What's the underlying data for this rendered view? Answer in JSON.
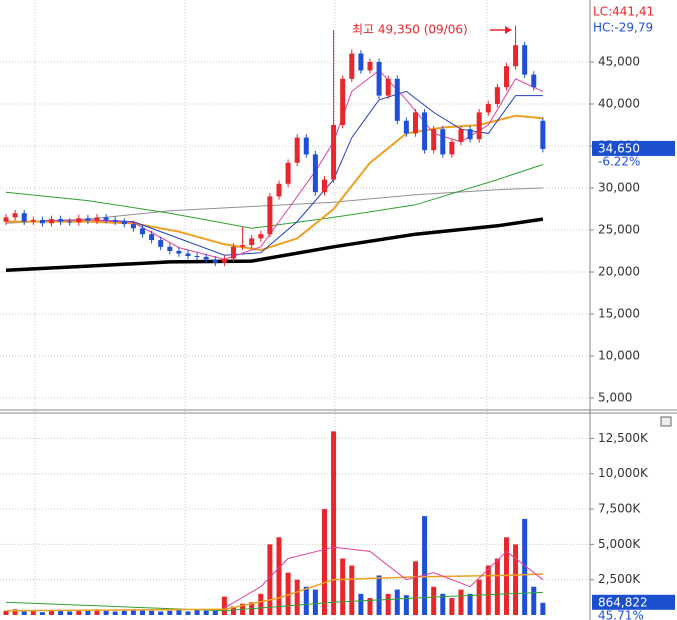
{
  "chart_data": [
    {
      "type": "candlestick",
      "indicators": [
        "LC:441,41",
        "HC:-29,79"
      ],
      "annotation": "최고 49,350 (09/06)",
      "up_color": "#e8262b",
      "down_color": "#1f4fd8",
      "xlim": [
        -0.66,
        64.18
      ],
      "ylim": [
        3570,
        52380
      ],
      "yticks": [
        {
          "value": 5000,
          "label": "5,000"
        },
        {
          "value": 10000,
          "label": "10,000"
        },
        {
          "value": 15000,
          "label": "15,000"
        },
        {
          "value": 20000,
          "label": "20,000"
        },
        {
          "value": 25000,
          "label": "25,000"
        },
        {
          "value": 30000,
          "label": "30,000"
        },
        {
          "value": 35000,
          "label": "35,000"
        },
        {
          "value": 40000,
          "label": "40,000"
        },
        {
          "value": 45000,
          "label": "45,000"
        }
      ],
      "grid": true,
      "open": [
        26000,
        26500,
        27000,
        26000,
        26200,
        25800,
        26300,
        26000,
        25900,
        26400,
        26100,
        26500,
        26200,
        26000,
        25700,
        25200,
        24500,
        23800,
        23000,
        22500,
        22200,
        21900,
        21800,
        21500,
        21100,
        21600,
        23000,
        23200,
        24000,
        24500,
        29000,
        30500,
        33000,
        36000,
        34000,
        29500,
        31000,
        37500,
        43000,
        46000,
        44000,
        45000,
        41000,
        43000,
        38000,
        36500,
        39000,
        34500,
        37000,
        34000,
        35500,
        37000,
        35800,
        39000,
        40000,
        42000,
        44500,
        47000,
        43500,
        38000
      ],
      "high": [
        26900,
        27400,
        27400,
        26600,
        26600,
        26700,
        26700,
        26400,
        26800,
        26800,
        26900,
        26900,
        26600,
        26400,
        26100,
        25600,
        24900,
        24200,
        23400,
        22900,
        22600,
        22300,
        22200,
        21900,
        22000,
        23400,
        25400,
        24400,
        24900,
        29400,
        30900,
        33400,
        36400,
        36400,
        34400,
        31400,
        48800,
        43400,
        46500,
        46400,
        45400,
        45400,
        43400,
        43400,
        38400,
        39400,
        39400,
        37400,
        37400,
        35900,
        37400,
        37400,
        39400,
        40400,
        42400,
        44900,
        49350,
        47400,
        43900,
        38400
      ],
      "low": [
        25600,
        26100,
        25600,
        25600,
        25400,
        25400,
        25600,
        25500,
        25500,
        25700,
        25700,
        25800,
        25600,
        25300,
        24800,
        24100,
        23400,
        22600,
        22100,
        21800,
        21500,
        21400,
        21100,
        20700,
        20700,
        21200,
        22600,
        22800,
        23600,
        24100,
        28600,
        30100,
        32600,
        33600,
        29100,
        29100,
        30600,
        37100,
        42600,
        43600,
        43600,
        40600,
        40600,
        37600,
        36100,
        36100,
        34100,
        34100,
        33600,
        33600,
        35100,
        35400,
        35400,
        38600,
        39600,
        41600,
        44100,
        43100,
        41600,
        34250
      ],
      "close": [
        26500,
        27000,
        26000,
        26200,
        25800,
        26300,
        26000,
        25900,
        26400,
        26100,
        26500,
        26200,
        26000,
        25700,
        25200,
        24500,
        23800,
        23000,
        22500,
        22200,
        21900,
        21800,
        21500,
        21100,
        21600,
        23000,
        23200,
        24000,
        24500,
        29000,
        30500,
        33000,
        36000,
        34000,
        29500,
        31000,
        37500,
        43000,
        46000,
        44000,
        45000,
        41000,
        43000,
        38000,
        36500,
        39000,
        34500,
        37000,
        34000,
        35500,
        37000,
        35800,
        39000,
        40000,
        42000,
        44500,
        47000,
        43500,
        42000,
        34650
      ],
      "lines": [
        {
          "color": "#909090",
          "width": 1,
          "x": [
            0,
            9,
            18,
            27,
            36,
            45,
            54,
            59
          ],
          "values": [
            25800,
            26300,
            27300,
            27800,
            28300,
            29200,
            29800,
            30000
          ]
        },
        {
          "color": "#30a030",
          "width": 1,
          "x": [
            0,
            9,
            18,
            27,
            36,
            45,
            54,
            59
          ],
          "values": [
            29500,
            28500,
            27000,
            25200,
            26500,
            28000,
            31000,
            32800
          ]
        },
        {
          "color": "#000000",
          "width": 3.5,
          "x": [
            0,
            9,
            18,
            27,
            36,
            45,
            54,
            59
          ],
          "values": [
            20200,
            20700,
            21200,
            21300,
            23000,
            24500,
            25500,
            26300
          ]
        },
        {
          "color": "#f0a020",
          "width": 2,
          "x": [
            0,
            9,
            14,
            19,
            24,
            28,
            32,
            36,
            40,
            44,
            48,
            52,
            56,
            59
          ],
          "values": [
            26000,
            26000,
            25800,
            24800,
            23300,
            22600,
            24000,
            27500,
            33000,
            36500,
            37200,
            37500,
            38600,
            38300
          ]
        },
        {
          "color": "#2040c0",
          "width": 1,
          "x": [
            4,
            9,
            14,
            19,
            24,
            28,
            32,
            36,
            38,
            41,
            44,
            47,
            50,
            53,
            56,
            59
          ],
          "values": [
            26100,
            26200,
            26000,
            24000,
            22000,
            22300,
            26000,
            31000,
            36000,
            40500,
            41500,
            39000,
            37000,
            36500,
            41000,
            41000
          ]
        },
        {
          "color": "#e040a0",
          "width": 1,
          "x": [
            4,
            9,
            14,
            19,
            24,
            28,
            31,
            34,
            36,
            38,
            41,
            44,
            47,
            50,
            53,
            56,
            59
          ],
          "values": [
            26100,
            26200,
            25900,
            22900,
            21500,
            23000,
            27500,
            32000,
            35500,
            41500,
            44000,
            40500,
            36500,
            35500,
            37500,
            43000,
            41500
          ]
        }
      ],
      "price_tag": {
        "value": 34650,
        "label": "34,650"
      },
      "change": "-6.22%"
    },
    {
      "type": "volume",
      "xlim": [
        -0.66,
        64.18
      ],
      "ylim": [
        0,
        14300
      ],
      "yticks": [
        {
          "value": 2500,
          "label": "2,500K"
        },
        {
          "value": 5000,
          "label": "5,000K"
        },
        {
          "value": 7500,
          "label": "7,500K"
        },
        {
          "value": 10000,
          "label": "10,000K"
        },
        {
          "value": 12500,
          "label": "12,500K"
        }
      ],
      "grid": true,
      "values": [
        300,
        400,
        250,
        300,
        200,
        350,
        300,
        250,
        300,
        350,
        400,
        300,
        250,
        300,
        400,
        350,
        300,
        250,
        300,
        350,
        250,
        400,
        300,
        300,
        1300,
        600,
        800,
        900,
        1500,
        5000,
        5500,
        3000,
        2500,
        2000,
        1800,
        7500,
        13000,
        4000,
        3500,
        1500,
        1200,
        2800,
        1500,
        1800,
        1400,
        3800,
        7000,
        2000,
        1500,
        1200,
        1800,
        1500,
        2500,
        3500,
        4000,
        5500,
        5000,
        6800,
        2000,
        864.822
      ],
      "lines": [
        {
          "color": "#30a030",
          "width": 1,
          "x": [
            0,
            24,
            36,
            48,
            59
          ],
          "values": [
            900,
            300,
            900,
            1300,
            1600
          ]
        },
        {
          "color": "#f0a020",
          "width": 1.5,
          "x": [
            0,
            24,
            30,
            36,
            45,
            55,
            59
          ],
          "values": [
            300,
            400,
            1200,
            2500,
            2700,
            2800,
            2900
          ]
        },
        {
          "color": "#e040a0",
          "width": 1,
          "x": [
            24,
            28,
            31,
            36,
            40,
            44,
            47,
            51,
            55,
            59
          ],
          "values": [
            500,
            2000,
            4000,
            4800,
            4500,
            2500,
            3000,
            2000,
            4500,
            2500
          ]
        }
      ],
      "volume_tag": {
        "value": 864.822,
        "label": "864,822"
      },
      "change": "45.71%"
    }
  ]
}
